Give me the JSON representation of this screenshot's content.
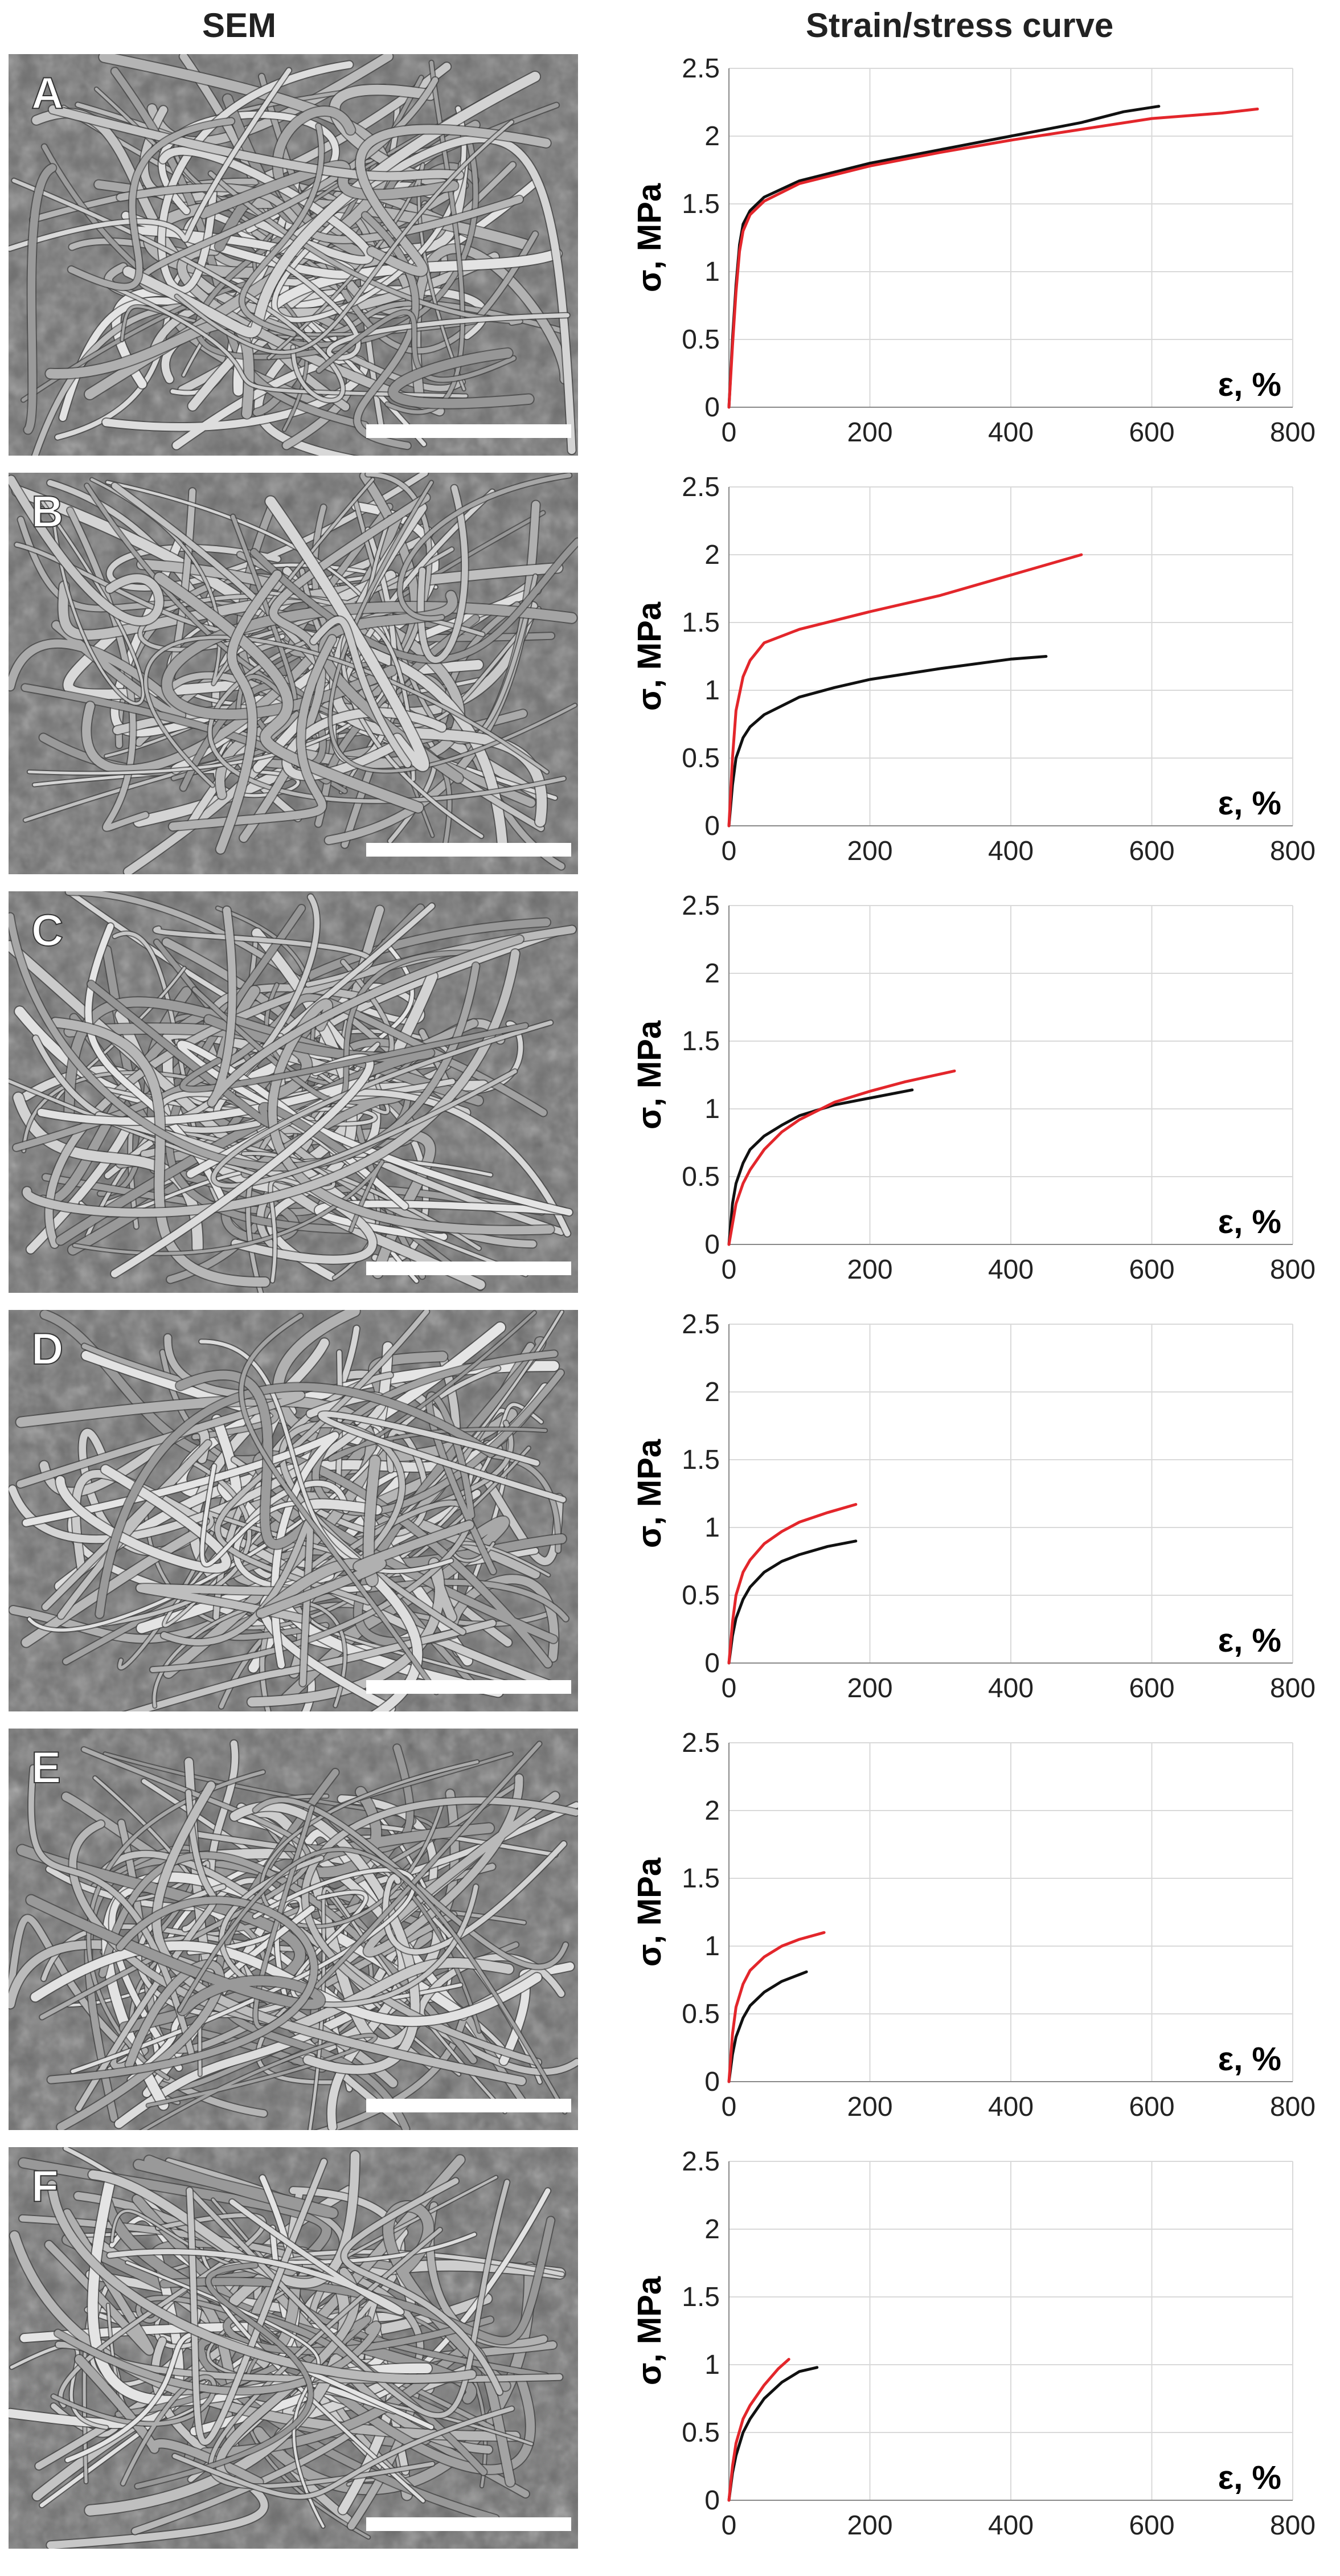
{
  "headers": {
    "sem": "SEM",
    "curve": "Strain/stress curve"
  },
  "colors": {
    "series_black": "#111111",
    "series_red": "#e3262b",
    "grid": "#d9d9d9",
    "sem_base": "#6f6f6f",
    "scale_bar": "#ffffff"
  },
  "chart_data": [
    {
      "type": "line",
      "panel": "A",
      "xlabel": "ε, %",
      "ylabel": "σ, MPa",
      "xlim": [
        0,
        800
      ],
      "ylim": [
        0,
        2.5
      ],
      "xticks": [
        0,
        200,
        400,
        600,
        800
      ],
      "yticks": [
        0,
        0.5,
        1,
        1.5,
        2,
        2.5
      ],
      "grid": true,
      "series": [
        {
          "color": "#111111",
          "x": [
            0,
            5,
            10,
            15,
            20,
            30,
            50,
            100,
            200,
            300,
            400,
            500,
            560,
            610
          ],
          "y": [
            0,
            0.5,
            0.9,
            1.2,
            1.35,
            1.45,
            1.55,
            1.67,
            1.8,
            1.9,
            2.0,
            2.1,
            2.18,
            2.22
          ]
        },
        {
          "color": "#e3262b",
          "x": [
            0,
            5,
            10,
            15,
            20,
            30,
            50,
            100,
            200,
            300,
            400,
            500,
            600,
            700,
            750
          ],
          "y": [
            0,
            0.45,
            0.85,
            1.15,
            1.3,
            1.42,
            1.52,
            1.65,
            1.78,
            1.88,
            1.97,
            2.05,
            2.13,
            2.17,
            2.2
          ]
        }
      ]
    },
    {
      "type": "line",
      "panel": "B",
      "xlabel": "ε, %",
      "ylabel": "σ, MPa",
      "xlim": [
        0,
        800
      ],
      "ylim": [
        0,
        2.5
      ],
      "xticks": [
        0,
        200,
        400,
        600,
        800
      ],
      "yticks": [
        0,
        0.5,
        1,
        1.5,
        2,
        2.5
      ],
      "grid": true,
      "series": [
        {
          "color": "#111111",
          "x": [
            0,
            5,
            10,
            20,
            30,
            50,
            100,
            150,
            200,
            300,
            400,
            450
          ],
          "y": [
            0,
            0.3,
            0.5,
            0.65,
            0.73,
            0.82,
            0.95,
            1.02,
            1.08,
            1.16,
            1.23,
            1.25
          ]
        },
        {
          "color": "#e3262b",
          "x": [
            0,
            5,
            10,
            20,
            30,
            50,
            100,
            200,
            300,
            400,
            500
          ],
          "y": [
            0,
            0.5,
            0.85,
            1.1,
            1.22,
            1.35,
            1.45,
            1.58,
            1.7,
            1.85,
            2.0
          ]
        }
      ]
    },
    {
      "type": "line",
      "panel": "C",
      "xlabel": "ε, %",
      "ylabel": "σ, MPa",
      "xlim": [
        0,
        800
      ],
      "ylim": [
        0,
        2.5
      ],
      "xticks": [
        0,
        200,
        400,
        600,
        800
      ],
      "yticks": [
        0,
        0.5,
        1,
        1.5,
        2,
        2.5
      ],
      "grid": true,
      "series": [
        {
          "color": "#111111",
          "x": [
            0,
            5,
            10,
            20,
            30,
            50,
            75,
            100,
            150,
            200,
            260
          ],
          "y": [
            0,
            0.3,
            0.45,
            0.6,
            0.7,
            0.8,
            0.88,
            0.95,
            1.03,
            1.08,
            1.14
          ]
        },
        {
          "color": "#e3262b",
          "x": [
            0,
            5,
            10,
            20,
            30,
            50,
            75,
            100,
            150,
            200,
            250,
            320
          ],
          "y": [
            0,
            0.15,
            0.3,
            0.45,
            0.55,
            0.7,
            0.83,
            0.92,
            1.05,
            1.13,
            1.2,
            1.28
          ]
        }
      ]
    },
    {
      "type": "line",
      "panel": "D",
      "xlabel": "ε, %",
      "ylabel": "σ, MPa",
      "xlim": [
        0,
        800
      ],
      "ylim": [
        0,
        2.5
      ],
      "xticks": [
        0,
        200,
        400,
        600,
        800
      ],
      "yticks": [
        0,
        0.5,
        1,
        1.5,
        2,
        2.5
      ],
      "grid": true,
      "series": [
        {
          "color": "#111111",
          "x": [
            0,
            5,
            10,
            20,
            30,
            50,
            75,
            100,
            140,
            180
          ],
          "y": [
            0,
            0.2,
            0.33,
            0.47,
            0.56,
            0.67,
            0.75,
            0.8,
            0.86,
            0.9
          ]
        },
        {
          "color": "#e3262b",
          "x": [
            0,
            5,
            10,
            20,
            30,
            50,
            75,
            100,
            140,
            180
          ],
          "y": [
            0,
            0.3,
            0.5,
            0.67,
            0.76,
            0.88,
            0.97,
            1.04,
            1.11,
            1.17
          ]
        }
      ]
    },
    {
      "type": "line",
      "panel": "E",
      "xlabel": "ε, %",
      "ylabel": "σ, MPa",
      "xlim": [
        0,
        800
      ],
      "ylim": [
        0,
        2.5
      ],
      "xticks": [
        0,
        200,
        400,
        600,
        800
      ],
      "yticks": [
        0,
        0.5,
        1,
        1.5,
        2,
        2.5
      ],
      "grid": true,
      "series": [
        {
          "color": "#111111",
          "x": [
            0,
            5,
            10,
            20,
            30,
            50,
            75,
            100,
            110
          ],
          "y": [
            0,
            0.2,
            0.33,
            0.47,
            0.56,
            0.66,
            0.74,
            0.79,
            0.81
          ]
        },
        {
          "color": "#e3262b",
          "x": [
            0,
            5,
            10,
            20,
            30,
            50,
            75,
            100,
            135
          ],
          "y": [
            0,
            0.35,
            0.55,
            0.72,
            0.82,
            0.92,
            1.0,
            1.05,
            1.1
          ]
        }
      ]
    },
    {
      "type": "line",
      "panel": "F",
      "xlabel": "ε, %",
      "ylabel": "σ, MPa",
      "xlim": [
        0,
        800
      ],
      "ylim": [
        0,
        2.5
      ],
      "xticks": [
        0,
        200,
        400,
        600,
        800
      ],
      "yticks": [
        0,
        0.5,
        1,
        1.5,
        2,
        2.5
      ],
      "grid": true,
      "series": [
        {
          "color": "#111111",
          "x": [
            0,
            5,
            10,
            20,
            30,
            50,
            75,
            100,
            125
          ],
          "y": [
            0,
            0.2,
            0.33,
            0.5,
            0.6,
            0.75,
            0.87,
            0.95,
            0.98
          ]
        },
        {
          "color": "#e3262b",
          "x": [
            0,
            5,
            10,
            20,
            30,
            50,
            70,
            85
          ],
          "y": [
            0,
            0.25,
            0.42,
            0.6,
            0.7,
            0.85,
            0.97,
            1.04
          ]
        }
      ]
    }
  ]
}
